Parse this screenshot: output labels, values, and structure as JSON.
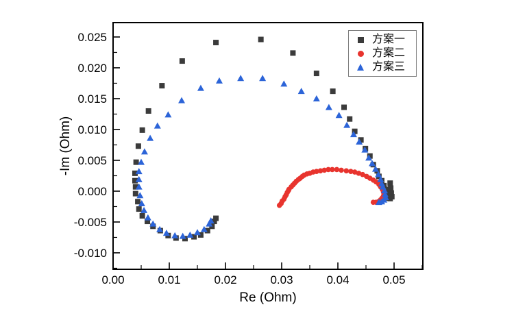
{
  "figure": {
    "background_color": "#ffffff",
    "frame_color": "#000000",
    "tick_label_color": "#000000",
    "legend_border_color": "#7f7f7f"
  },
  "chart_data": {
    "type": "scatter",
    "title": "",
    "xlabel": "Re (Ohm)",
    "ylabel": "-Im (Ohm)",
    "xlim": [
      0,
      0.05512
    ],
    "ylim": [
      -0.01267,
      0.02733
    ],
    "grid": false,
    "legend_position": "top-right",
    "x_major_ticks": [
      0,
      0.01,
      0.02,
      0.03,
      0.04,
      0.05
    ],
    "x_tick_labels": [
      "0.00",
      "0.01",
      "0.02",
      "0.03",
      "0.04",
      "0.05"
    ],
    "x_minor_ticks": [
      0.005,
      0.015,
      0.025,
      0.035,
      0.045,
      0.055
    ],
    "y_major_ticks": [
      -0.01,
      -0.005,
      0.0,
      0.005,
      0.01,
      0.015,
      0.02,
      0.025
    ],
    "y_tick_labels": [
      "-0.010",
      "-0.005",
      "0.000",
      "0.005",
      "0.010",
      "0.015",
      "0.020",
      "0.025"
    ],
    "y_minor_ticks": [
      -0.0125,
      -0.0075,
      -0.0025,
      0.0025,
      0.0075,
      0.0125,
      0.0175,
      0.0225
    ],
    "series": [
      {
        "name": "方案一",
        "marker": "square",
        "color": "#3b3b3b",
        "points": [
          [
            0.0183,
            -0.0044
          ],
          [
            0.018,
            -0.0049
          ],
          [
            0.0176,
            -0.0057
          ],
          [
            0.0168,
            -0.0064
          ],
          [
            0.0156,
            -0.0071
          ],
          [
            0.0144,
            -0.0074
          ],
          [
            0.0128,
            -0.0077
          ],
          [
            0.0112,
            -0.0076
          ],
          [
            0.0098,
            -0.0072
          ],
          [
            0.0084,
            -0.0064
          ],
          [
            0.0071,
            -0.0057
          ],
          [
            0.0061,
            -0.0049
          ],
          [
            0.0052,
            -0.004
          ],
          [
            0.0046,
            -0.0029
          ],
          [
            0.0044,
            -0.0017
          ],
          [
            0.004,
            -0.0004
          ],
          [
            0.004,
            0.0007
          ],
          [
            0.0039,
            0.0017
          ],
          [
            0.0039,
            0.0029
          ],
          [
            0.0041,
            0.0047
          ],
          [
            0.0045,
            0.0073
          ],
          [
            0.0052,
            0.0099
          ],
          [
            0.0063,
            0.013
          ],
          [
            0.0087,
            0.0171
          ],
          [
            0.0123,
            0.0211
          ],
          [
            0.0183,
            0.0241
          ],
          [
            0.0263,
            0.0246
          ],
          [
            0.032,
            0.0224
          ],
          [
            0.0362,
            0.0191
          ],
          [
            0.0391,
            0.0162
          ],
          [
            0.0411,
            0.0136
          ],
          [
            0.0421,
            0.0117
          ],
          [
            0.043,
            0.0097
          ],
          [
            0.0441,
            0.0083
          ],
          [
            0.0449,
            0.0069
          ],
          [
            0.0457,
            0.0057
          ],
          [
            0.0463,
            0.0043
          ],
          [
            0.047,
            0.0033
          ],
          [
            0.0473,
            0.0024
          ],
          [
            0.0478,
            0.0017
          ],
          [
            0.0482,
            0.0009
          ],
          [
            0.0485,
            0.0003
          ],
          [
            0.0489,
            -0.0002
          ],
          [
            0.0491,
            -0.0007
          ],
          [
            0.0493,
            0.0013
          ],
          [
            0.0494,
            0.0005
          ],
          [
            0.0495,
            -0.0003
          ],
          [
            0.0496,
            -0.0009
          ],
          [
            0.0493,
            -0.0012
          ],
          [
            0.049,
            -0.0011
          ]
        ]
      },
      {
        "name": "方案二",
        "marker": "circle",
        "color": "#e8342e",
        "points": [
          [
            0.0296,
            -0.0023
          ],
          [
            0.0299,
            -0.002
          ],
          [
            0.0301,
            -0.0016
          ],
          [
            0.0304,
            -0.0013
          ],
          [
            0.0306,
            -0.0009
          ],
          [
            0.0308,
            -0.0006
          ],
          [
            0.031,
            -0.0002
          ],
          [
            0.0312,
            0.0001
          ],
          [
            0.0313,
            0.0003
          ],
          [
            0.0317,
            0.0007
          ],
          [
            0.032,
            0.001
          ],
          [
            0.0323,
            0.0013
          ],
          [
            0.0326,
            0.0016
          ],
          [
            0.033,
            0.0019
          ],
          [
            0.0333,
            0.0021
          ],
          [
            0.0337,
            0.0024
          ],
          [
            0.034,
            0.0026
          ],
          [
            0.0345,
            0.0028
          ],
          [
            0.035,
            0.0029
          ],
          [
            0.0356,
            0.0031
          ],
          [
            0.0362,
            0.0032
          ],
          [
            0.0369,
            0.0033
          ],
          [
            0.0376,
            0.0034
          ],
          [
            0.0383,
            0.0035
          ],
          [
            0.039,
            0.0035
          ],
          [
            0.0398,
            0.0035
          ],
          [
            0.0406,
            0.0034
          ],
          [
            0.0415,
            0.0033
          ],
          [
            0.0423,
            0.0032
          ],
          [
            0.043,
            0.0031
          ],
          [
            0.0437,
            0.0029
          ],
          [
            0.0444,
            0.0027
          ],
          [
            0.0451,
            0.0024
          ],
          [
            0.0457,
            0.0021
          ],
          [
            0.0463,
            0.0018
          ],
          [
            0.0468,
            0.0015
          ],
          [
            0.0473,
            0.0011
          ],
          [
            0.0476,
            0.0007
          ],
          [
            0.0479,
            0.0003
          ],
          [
            0.0481,
            -0.0001
          ],
          [
            0.0482,
            -0.0004
          ],
          [
            0.0481,
            -0.0008
          ],
          [
            0.0479,
            -0.0011
          ],
          [
            0.0476,
            -0.0014
          ],
          [
            0.0472,
            -0.0017
          ],
          [
            0.0468,
            -0.0018
          ],
          [
            0.0463,
            -0.0018
          ]
        ]
      },
      {
        "name": "方案三",
        "marker": "triangle",
        "color": "#2c64d8",
        "points": [
          [
            0.0174,
            -0.0048
          ],
          [
            0.0171,
            -0.0053
          ],
          [
            0.0162,
            -0.0062
          ],
          [
            0.015,
            -0.0067
          ],
          [
            0.0137,
            -0.0071
          ],
          [
            0.0124,
            -0.0073
          ],
          [
            0.011,
            -0.0072
          ],
          [
            0.0095,
            -0.0068
          ],
          [
            0.0083,
            -0.0062
          ],
          [
            0.0071,
            -0.0053
          ],
          [
            0.0062,
            -0.0043
          ],
          [
            0.0055,
            -0.0031
          ],
          [
            0.0051,
            -0.002
          ],
          [
            0.0048,
            -0.0007
          ],
          [
            0.0046,
            0.0007
          ],
          [
            0.0046,
            0.0019
          ],
          [
            0.0046,
            0.0032
          ],
          [
            0.005,
            0.0047
          ],
          [
            0.0056,
            0.0064
          ],
          [
            0.0066,
            0.0086
          ],
          [
            0.0079,
            0.0106
          ],
          [
            0.0098,
            0.0124
          ],
          [
            0.0122,
            0.0147
          ],
          [
            0.0156,
            0.0167
          ],
          [
            0.0189,
            0.0179
          ],
          [
            0.0227,
            0.0183
          ],
          [
            0.0266,
            0.0183
          ],
          [
            0.0304,
            0.0174
          ],
          [
            0.0335,
            0.0162
          ],
          [
            0.0362,
            0.015
          ],
          [
            0.0384,
            0.0136
          ],
          [
            0.0402,
            0.0123
          ],
          [
            0.0416,
            0.0107
          ],
          [
            0.0428,
            0.0092
          ],
          [
            0.0438,
            0.008
          ],
          [
            0.0448,
            0.0067
          ],
          [
            0.0455,
            0.0054
          ],
          [
            0.0461,
            0.0045
          ],
          [
            0.0467,
            0.0036
          ],
          [
            0.0472,
            0.0027
          ],
          [
            0.0476,
            0.0019
          ],
          [
            0.0478,
            0.0012
          ],
          [
            0.048,
            0.0007
          ],
          [
            0.0483,
            0.0001
          ],
          [
            0.0484,
            -0.0005
          ],
          [
            0.0485,
            -0.001
          ],
          [
            0.0482,
            -0.0014
          ],
          [
            0.0478,
            -0.0017
          ],
          [
            0.0473,
            -0.0018
          ]
        ]
      }
    ]
  }
}
